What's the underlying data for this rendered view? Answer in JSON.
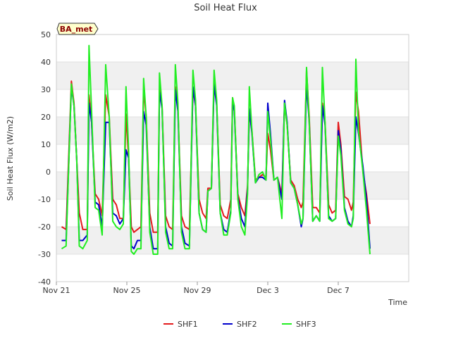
{
  "chart_data": {
    "type": "line",
    "title": "Soil Heat Flux",
    "xlabel": "Time",
    "ylabel": "Soil Heat Flux (W/m2)",
    "badge": "BA_met",
    "xlim": [
      0,
      20
    ],
    "ylim": [
      -40,
      50
    ],
    "x_ticks": [
      {
        "x": 0,
        "label": "Nov 21"
      },
      {
        "x": 4,
        "label": "Nov 25"
      },
      {
        "x": 8,
        "label": "Nov 29"
      },
      {
        "x": 12,
        "label": "Dec 3"
      },
      {
        "x": 16,
        "label": "Dec 7"
      }
    ],
    "y_ticks": [
      -40,
      -30,
      -20,
      -10,
      0,
      10,
      20,
      30,
      40,
      50
    ],
    "grid": true,
    "legend_position": "bottom-center",
    "colors": {
      "SHF1": "#e31a1c",
      "SHF2": "#0000cc",
      "SHF3": "#22ee22",
      "band": "#f0f0f0",
      "badge_bg": "#ffffcc"
    },
    "series": [
      {
        "name": "SHF1",
        "points": [
          [
            0.3,
            -20
          ],
          [
            0.55,
            -21
          ],
          [
            0.85,
            33
          ],
          [
            1.0,
            25
          ],
          [
            1.15,
            5
          ],
          [
            1.3,
            -15
          ],
          [
            1.5,
            -21
          ],
          [
            1.75,
            -21
          ],
          [
            1.85,
            28
          ],
          [
            2.0,
            18
          ],
          [
            2.2,
            -8
          ],
          [
            2.4,
            -10
          ],
          [
            2.6,
            -16
          ],
          [
            2.8,
            28
          ],
          [
            3.0,
            20
          ],
          [
            3.2,
            -10
          ],
          [
            3.4,
            -12
          ],
          [
            3.6,
            -17
          ],
          [
            3.8,
            -17
          ],
          [
            3.95,
            21
          ],
          [
            4.1,
            5
          ],
          [
            4.25,
            -20
          ],
          [
            4.4,
            -22
          ],
          [
            4.6,
            -21
          ],
          [
            4.8,
            -20
          ],
          [
            4.95,
            30
          ],
          [
            5.1,
            20
          ],
          [
            5.3,
            -15
          ],
          [
            5.5,
            -22
          ],
          [
            5.75,
            -22
          ],
          [
            5.85,
            30
          ],
          [
            6.0,
            24
          ],
          [
            6.2,
            -16
          ],
          [
            6.4,
            -20
          ],
          [
            6.6,
            -21
          ],
          [
            6.75,
            31
          ],
          [
            6.9,
            23
          ],
          [
            7.1,
            -16
          ],
          [
            7.3,
            -20
          ],
          [
            7.55,
            -21
          ],
          [
            7.75,
            30
          ],
          [
            7.9,
            24
          ],
          [
            8.1,
            -10
          ],
          [
            8.3,
            -15
          ],
          [
            8.5,
            -17
          ],
          [
            8.6,
            -6
          ],
          [
            8.8,
            -6
          ],
          [
            8.95,
            33
          ],
          [
            9.1,
            25
          ],
          [
            9.3,
            -12
          ],
          [
            9.5,
            -16
          ],
          [
            9.7,
            -17
          ],
          [
            9.9,
            -10
          ],
          [
            10.0,
            27
          ],
          [
            10.1,
            23
          ],
          [
            10.3,
            -8
          ],
          [
            10.5,
            -13
          ],
          [
            10.7,
            -16
          ],
          [
            10.85,
            -5
          ],
          [
            10.95,
            22
          ],
          [
            11.1,
            15
          ],
          [
            11.3,
            -3
          ],
          [
            11.5,
            -2
          ],
          [
            11.7,
            -1
          ],
          [
            11.9,
            -2
          ],
          [
            12.0,
            14
          ],
          [
            12.15,
            8
          ],
          [
            12.35,
            -3
          ],
          [
            12.55,
            -2
          ],
          [
            12.8,
            -8
          ],
          [
            12.95,
            25
          ],
          [
            13.1,
            17
          ],
          [
            13.3,
            -3
          ],
          [
            13.5,
            -5
          ],
          [
            13.7,
            -10
          ],
          [
            13.9,
            -13
          ],
          [
            14.0,
            -11
          ],
          [
            14.2,
            37
          ],
          [
            14.35,
            20
          ],
          [
            14.55,
            -13
          ],
          [
            14.75,
            -13
          ],
          [
            14.95,
            -15
          ],
          [
            15.1,
            25
          ],
          [
            15.25,
            18
          ],
          [
            15.45,
            -12
          ],
          [
            15.65,
            -15
          ],
          [
            15.85,
            -14
          ],
          [
            16.0,
            18
          ],
          [
            16.15,
            10
          ],
          [
            16.35,
            -9
          ],
          [
            16.55,
            -10
          ],
          [
            16.75,
            -14
          ],
          [
            16.85,
            -11
          ],
          [
            17.0,
            29
          ],
          [
            17.15,
            22
          ],
          [
            17.4,
            0
          ],
          [
            17.6,
            -8
          ],
          [
            17.8,
            -19
          ]
        ]
      },
      {
        "name": "SHF2",
        "points": [
          [
            0.3,
            -25
          ],
          [
            0.55,
            -25
          ],
          [
            0.85,
            31
          ],
          [
            1.0,
            24
          ],
          [
            1.15,
            5
          ],
          [
            1.3,
            -25
          ],
          [
            1.5,
            -25
          ],
          [
            1.75,
            -23
          ],
          [
            1.85,
            25
          ],
          [
            2.0,
            18
          ],
          [
            2.2,
            -11
          ],
          [
            2.4,
            -12
          ],
          [
            2.6,
            -20
          ],
          [
            2.8,
            18
          ],
          [
            3.0,
            18
          ],
          [
            3.2,
            -15
          ],
          [
            3.4,
            -16
          ],
          [
            3.6,
            -19
          ],
          [
            3.8,
            -17
          ],
          [
            3.95,
            8
          ],
          [
            4.1,
            5
          ],
          [
            4.25,
            -27
          ],
          [
            4.4,
            -28
          ],
          [
            4.6,
            -25
          ],
          [
            4.8,
            -25
          ],
          [
            4.95,
            22
          ],
          [
            5.1,
            17
          ],
          [
            5.3,
            -20
          ],
          [
            5.5,
            -28
          ],
          [
            5.75,
            -28
          ],
          [
            5.85,
            29
          ],
          [
            6.0,
            23
          ],
          [
            6.2,
            -20
          ],
          [
            6.4,
            -26
          ],
          [
            6.6,
            -27
          ],
          [
            6.75,
            30
          ],
          [
            6.9,
            22
          ],
          [
            7.1,
            -20
          ],
          [
            7.3,
            -26
          ],
          [
            7.55,
            -27
          ],
          [
            7.75,
            31
          ],
          [
            7.9,
            24
          ],
          [
            8.1,
            -15
          ],
          [
            8.3,
            -21
          ],
          [
            8.5,
            -22
          ],
          [
            8.6,
            -7
          ],
          [
            8.8,
            -6
          ],
          [
            8.95,
            32
          ],
          [
            9.1,
            24
          ],
          [
            9.3,
            -15
          ],
          [
            9.5,
            -21
          ],
          [
            9.7,
            -22
          ],
          [
            9.9,
            -14
          ],
          [
            10.0,
            26
          ],
          [
            10.1,
            22
          ],
          [
            10.3,
            -9
          ],
          [
            10.5,
            -17
          ],
          [
            10.7,
            -20
          ],
          [
            10.85,
            -6
          ],
          [
            10.95,
            23
          ],
          [
            11.1,
            14
          ],
          [
            11.3,
            -4
          ],
          [
            11.5,
            -2
          ],
          [
            11.7,
            -2
          ],
          [
            11.9,
            -3
          ],
          [
            12.0,
            25
          ],
          [
            12.15,
            14
          ],
          [
            12.35,
            -3
          ],
          [
            12.55,
            -2
          ],
          [
            12.8,
            -10
          ],
          [
            12.95,
            26
          ],
          [
            13.1,
            18
          ],
          [
            13.3,
            -4
          ],
          [
            13.5,
            -6
          ],
          [
            13.7,
            -12
          ],
          [
            13.9,
            -20
          ],
          [
            14.0,
            -17
          ],
          [
            14.2,
            32
          ],
          [
            14.35,
            18
          ],
          [
            14.55,
            -18
          ],
          [
            14.75,
            -16
          ],
          [
            14.95,
            -18
          ],
          [
            15.1,
            24
          ],
          [
            15.25,
            17
          ],
          [
            15.45,
            -16
          ],
          [
            15.65,
            -18
          ],
          [
            15.85,
            -17
          ],
          [
            16.0,
            15
          ],
          [
            16.15,
            8
          ],
          [
            16.35,
            -13
          ],
          [
            16.55,
            -18
          ],
          [
            16.75,
            -20
          ],
          [
            16.85,
            -16
          ],
          [
            17.0,
            20
          ],
          [
            17.15,
            14
          ],
          [
            17.4,
            2
          ],
          [
            17.6,
            -10
          ],
          [
            17.8,
            -28
          ]
        ]
      },
      {
        "name": "SHF3",
        "points": [
          [
            0.3,
            -28
          ],
          [
            0.55,
            -27
          ],
          [
            0.85,
            32
          ],
          [
            1.0,
            24
          ],
          [
            1.15,
            5
          ],
          [
            1.3,
            -27
          ],
          [
            1.5,
            -28
          ],
          [
            1.75,
            -25
          ],
          [
            1.85,
            46
          ],
          [
            2.0,
            22
          ],
          [
            2.2,
            -13
          ],
          [
            2.4,
            -14
          ],
          [
            2.6,
            -23
          ],
          [
            2.8,
            39
          ],
          [
            3.0,
            20
          ],
          [
            3.2,
            -18
          ],
          [
            3.4,
            -20
          ],
          [
            3.6,
            -21
          ],
          [
            3.8,
            -19
          ],
          [
            3.95,
            31
          ],
          [
            4.1,
            8
          ],
          [
            4.25,
            -29
          ],
          [
            4.4,
            -30
          ],
          [
            4.6,
            -28
          ],
          [
            4.8,
            -28
          ],
          [
            4.95,
            34
          ],
          [
            5.1,
            20
          ],
          [
            5.3,
            -22
          ],
          [
            5.5,
            -30
          ],
          [
            5.75,
            -30
          ],
          [
            5.85,
            36
          ],
          [
            6.0,
            24
          ],
          [
            6.2,
            -22
          ],
          [
            6.4,
            -28
          ],
          [
            6.6,
            -28
          ],
          [
            6.75,
            39
          ],
          [
            6.9,
            25
          ],
          [
            7.1,
            -22
          ],
          [
            7.3,
            -28
          ],
          [
            7.55,
            -28
          ],
          [
            7.75,
            37
          ],
          [
            7.9,
            26
          ],
          [
            8.1,
            -15
          ],
          [
            8.3,
            -21
          ],
          [
            8.5,
            -22
          ],
          [
            8.6,
            -7
          ],
          [
            8.8,
            -6
          ],
          [
            8.95,
            37
          ],
          [
            9.1,
            26
          ],
          [
            9.3,
            -15
          ],
          [
            9.5,
            -23
          ],
          [
            9.7,
            -23
          ],
          [
            9.9,
            -15
          ],
          [
            10.0,
            27
          ],
          [
            10.1,
            24
          ],
          [
            10.3,
            -10
          ],
          [
            10.5,
            -20
          ],
          [
            10.7,
            -23
          ],
          [
            10.85,
            -8
          ],
          [
            10.95,
            31
          ],
          [
            11.1,
            15
          ],
          [
            11.3,
            -4
          ],
          [
            11.5,
            -1
          ],
          [
            11.7,
            0
          ],
          [
            11.9,
            -3
          ],
          [
            12.0,
            22
          ],
          [
            12.15,
            12
          ],
          [
            12.35,
            -3
          ],
          [
            12.55,
            -2
          ],
          [
            12.8,
            -17
          ],
          [
            12.95,
            25
          ],
          [
            13.1,
            17
          ],
          [
            13.3,
            -4
          ],
          [
            13.5,
            -6
          ],
          [
            13.7,
            -12
          ],
          [
            13.9,
            -19
          ],
          [
            14.0,
            -17
          ],
          [
            14.2,
            38
          ],
          [
            14.35,
            18
          ],
          [
            14.55,
            -18
          ],
          [
            14.75,
            -16
          ],
          [
            14.95,
            -18
          ],
          [
            15.1,
            38
          ],
          [
            15.25,
            18
          ],
          [
            15.45,
            -17
          ],
          [
            15.65,
            -18
          ],
          [
            15.85,
            -17
          ],
          [
            16.0,
            13
          ],
          [
            16.15,
            6
          ],
          [
            16.35,
            -14
          ],
          [
            16.55,
            -19
          ],
          [
            16.75,
            -20
          ],
          [
            16.85,
            -17
          ],
          [
            17.0,
            41
          ],
          [
            17.15,
            15
          ],
          [
            17.4,
            0
          ],
          [
            17.6,
            -14
          ],
          [
            17.8,
            -30
          ]
        ]
      }
    ]
  }
}
